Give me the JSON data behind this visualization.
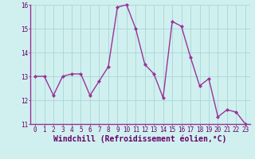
{
  "x": [
    0,
    1,
    2,
    3,
    4,
    5,
    6,
    7,
    8,
    9,
    10,
    11,
    12,
    13,
    14,
    15,
    16,
    17,
    18,
    19,
    20,
    21,
    22,
    23
  ],
  "y": [
    13.0,
    13.0,
    12.2,
    13.0,
    13.1,
    13.1,
    12.2,
    12.8,
    13.4,
    15.9,
    16.0,
    15.0,
    13.5,
    13.1,
    12.1,
    15.3,
    15.1,
    13.8,
    12.6,
    12.9,
    11.3,
    11.6,
    11.5,
    11.0
  ],
  "line_color": "#993399",
  "marker": "D",
  "marker_size": 2,
  "bg_color": "#d0f0f0",
  "grid_color": "#b0d8d8",
  "xlabel": "Windchill (Refroidissement éolien,°C)",
  "ylim": [
    11,
    16
  ],
  "xlim": [
    -0.5,
    23.5
  ],
  "yticks": [
    11,
    12,
    13,
    14,
    15,
    16
  ],
  "xticks": [
    0,
    1,
    2,
    3,
    4,
    5,
    6,
    7,
    8,
    9,
    10,
    11,
    12,
    13,
    14,
    15,
    16,
    17,
    18,
    19,
    20,
    21,
    22,
    23
  ],
  "tick_fontsize": 5.5,
  "xlabel_fontsize": 7.0,
  "tick_color": "#660066",
  "line_width": 1.0
}
